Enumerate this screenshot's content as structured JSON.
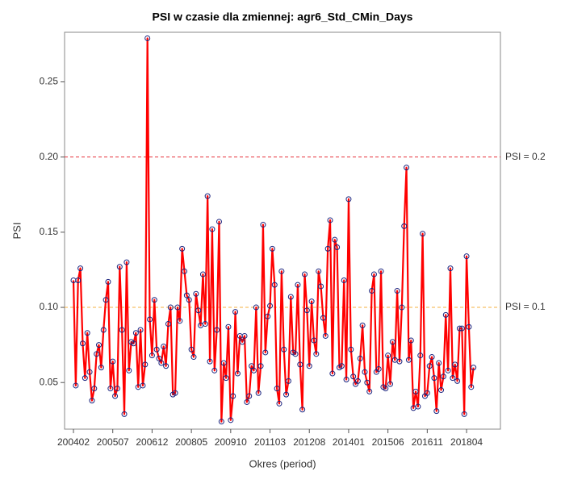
{
  "chart_data": {
    "type": "line",
    "title": "PSI w czasie dla zmiennej: agr6_Std_CMin_Days",
    "x_label": "Okres (period)",
    "y_label": "PSI",
    "categories": [
      "200402",
      null,
      null,
      null,
      null,
      null,
      null,
      null,
      null,
      null,
      null,
      null,
      null,
      null,
      null,
      null,
      null,
      "200507",
      null,
      null,
      null,
      null,
      null,
      null,
      null,
      null,
      null,
      null,
      null,
      null,
      null,
      null,
      null,
      null,
      "200612",
      null,
      null,
      null,
      null,
      null,
      null,
      null,
      null,
      null,
      null,
      null,
      null,
      null,
      null,
      null,
      null,
      "200805",
      null,
      null,
      null,
      null,
      null,
      null,
      null,
      null,
      null,
      null,
      null,
      null,
      null,
      null,
      null,
      null,
      "200910",
      null,
      null,
      null,
      null,
      null,
      null,
      null,
      null,
      null,
      null,
      null,
      null,
      null,
      null,
      null,
      null,
      "201103",
      null,
      null,
      null,
      null,
      null,
      null,
      null,
      null,
      null,
      null,
      null,
      null,
      null,
      null,
      null,
      null,
      "201208",
      null,
      null,
      null,
      null,
      null,
      null,
      null,
      null,
      null,
      null,
      null,
      null,
      null,
      null,
      null,
      null,
      "201401",
      null,
      null,
      null,
      null,
      null,
      null,
      null,
      null,
      null,
      null,
      null,
      null,
      null,
      null,
      null,
      null,
      "201506",
      null,
      null,
      null,
      null,
      null,
      null,
      null,
      null,
      null,
      null,
      null,
      null,
      null,
      null,
      null,
      null,
      "201611",
      null,
      null,
      null,
      null,
      null,
      null,
      null,
      null,
      null,
      null,
      null,
      null,
      null,
      null,
      null,
      null,
      "201804",
      null,
      null,
      null
    ],
    "series": [
      {
        "name": "PSI",
        "color": "#ff0000",
        "marker_color": "#1a237e",
        "values": [
          0.118,
          0.048,
          0.118,
          0.126,
          0.076,
          0.053,
          0.083,
          0.057,
          0.038,
          0.046,
          0.069,
          0.075,
          0.06,
          0.085,
          0.105,
          0.117,
          0.046,
          0.064,
          0.041,
          0.046,
          0.127,
          0.085,
          0.029,
          0.13,
          0.058,
          0.077,
          0.076,
          0.083,
          0.047,
          0.085,
          0.048,
          0.062,
          0.279,
          0.092,
          0.068,
          0.105,
          0.072,
          0.066,
          0.063,
          0.074,
          0.061,
          0.089,
          0.1,
          0.042,
          0.043,
          0.1,
          0.091,
          0.139,
          0.124,
          0.108,
          0.105,
          0.072,
          0.067,
          0.109,
          0.098,
          0.088,
          0.122,
          0.089,
          0.174,
          0.064,
          0.152,
          0.058,
          0.085,
          0.157,
          0.024,
          0.063,
          0.053,
          0.087,
          0.025,
          0.041,
          0.097,
          0.056,
          0.081,
          0.077,
          0.081,
          0.037,
          0.041,
          0.061,
          0.058,
          0.1,
          0.043,
          0.061,
          0.155,
          0.07,
          0.094,
          0.101,
          0.139,
          0.115,
          0.046,
          0.036,
          0.124,
          0.072,
          0.042,
          0.051,
          0.107,
          0.07,
          0.069,
          0.115,
          0.062,
          0.032,
          0.122,
          0.098,
          0.061,
          0.104,
          0.078,
          0.069,
          0.124,
          0.114,
          0.093,
          0.081,
          0.139,
          0.158,
          0.056,
          0.145,
          0.14,
          0.06,
          0.061,
          0.118,
          0.052,
          0.172,
          0.072,
          0.054,
          0.049,
          0.051,
          0.066,
          0.088,
          0.057,
          0.05,
          0.044,
          0.111,
          0.122,
          0.057,
          0.059,
          0.124,
          0.047,
          0.046,
          0.068,
          0.049,
          0.077,
          0.065,
          0.111,
          0.064,
          0.1,
          0.154,
          0.193,
          0.065,
          0.078,
          0.033,
          0.044,
          0.034,
          0.068,
          0.149,
          0.041,
          0.043,
          0.061,
          0.067,
          0.053,
          0.031,
          0.063,
          0.045,
          0.054,
          0.095,
          0.058,
          0.126,
          0.053,
          0.062,
          0.051,
          0.086,
          0.086,
          0.029,
          0.134,
          0.087,
          0.047,
          0.06
        ]
      }
    ],
    "ylim": [
      0.019,
      0.283
    ],
    "yticks": [
      0.05,
      {
        "value": 0.1,
        "label": "0.10"
      },
      0.15,
      {
        "value": 0.2,
        "label": "0.20"
      },
      0.25
    ],
    "reference_lines": [
      {
        "value": 0.2,
        "label": "PSI = 0.2",
        "color": "#e8323c"
      },
      {
        "value": 0.1,
        "label": "PSI = 0.1",
        "color": "#f5b041"
      }
    ]
  }
}
